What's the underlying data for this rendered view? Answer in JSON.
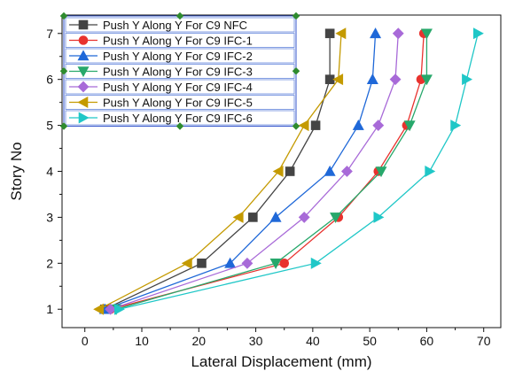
{
  "chart_data": {
    "type": "line",
    "title": "",
    "xlabel": "Lateral Displacement (mm)",
    "ylabel": "Story No",
    "xlim": [
      -4,
      73
    ],
    "ylim": [
      0.6,
      7.4
    ],
    "xticks": [
      0,
      10,
      20,
      30,
      40,
      50,
      60,
      70
    ],
    "yticks": [
      1,
      2,
      3,
      4,
      5,
      6,
      7
    ],
    "grid": false,
    "legend_position": "top-left",
    "series": [
      {
        "name": "Push Y Along Y For C9 NFC",
        "color": "#444444",
        "marker": "square",
        "x": [
          3.5,
          20.5,
          29.5,
          36.0,
          40.5,
          43.0,
          43.0
        ],
        "y": [
          1,
          2,
          3,
          4,
          5,
          6,
          7
        ]
      },
      {
        "name": "Push Y Along Y For C9 IFC-1",
        "color": "#e8322e",
        "marker": "circle",
        "x": [
          4.5,
          35.0,
          44.5,
          51.5,
          56.5,
          59.0,
          59.5
        ],
        "y": [
          1,
          2,
          3,
          4,
          5,
          6,
          7
        ]
      },
      {
        "name": "Push Y Along Y For C9 IFC-2",
        "color": "#1f68d8",
        "marker": "triangle-up",
        "x": [
          3.5,
          25.5,
          33.5,
          43.0,
          48.0,
          50.5,
          51.0
        ],
        "y": [
          1,
          2,
          3,
          4,
          5,
          6,
          7
        ]
      },
      {
        "name": "Push Y Along Y For C9 IFC-3",
        "color": "#27a86b",
        "marker": "triangle-down",
        "x": [
          5.5,
          33.5,
          44.0,
          52.0,
          57.0,
          60.0,
          60.0
        ],
        "y": [
          1,
          2,
          3,
          4,
          5,
          6,
          7
        ]
      },
      {
        "name": "Push Y Along Y For C9 IFC-4",
        "color": "#a86ad8",
        "marker": "diamond",
        "x": [
          4.5,
          28.5,
          38.5,
          46.0,
          51.5,
          54.5,
          55.0
        ],
        "y": [
          1,
          2,
          3,
          4,
          5,
          6,
          7
        ]
      },
      {
        "name": "Push Y Along Y For C9 IFC-5",
        "color": "#c49a00",
        "marker": "triangle-left",
        "x": [
          2.5,
          18.0,
          27.0,
          34.0,
          38.5,
          44.5,
          45.0
        ],
        "y": [
          1,
          2,
          3,
          4,
          5,
          6,
          7
        ]
      },
      {
        "name": "Push Y Along Y For C9 IFC-6",
        "color": "#1fc7c7",
        "marker": "triangle-right",
        "x": [
          6.0,
          40.5,
          51.5,
          60.5,
          65.0,
          67.0,
          69.0
        ],
        "y": [
          1,
          2,
          3,
          4,
          5,
          6,
          7
        ]
      }
    ]
  }
}
